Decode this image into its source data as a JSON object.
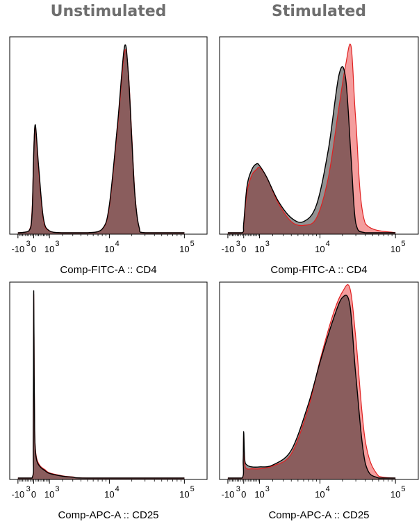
{
  "columns": [
    "Unstimulated",
    "Stimulated"
  ],
  "colors": {
    "series_a_fill": "#6d6d6d",
    "series_a_line": "#000000",
    "series_b_fill": "#f07c7c",
    "series_b_line": "#e02020",
    "overlap": "#8a5a5a"
  },
  "chart_data": [
    {
      "type": "area",
      "column": "Unstimulated",
      "xlabel": "Comp-FITC-A :: CD4",
      "x_scale": "biexponential",
      "x_ticks": [
        {
          "base": "-10",
          "exp": "3"
        },
        {
          "base": "0",
          "exp": ""
        },
        {
          "base": "10",
          "exp": "3"
        },
        {
          "base": "10",
          "exp": "4"
        },
        {
          "base": "10",
          "exp": "5"
        }
      ],
      "x": [
        -1000,
        -300,
        -100,
        0,
        100,
        300,
        600,
        1000,
        2000,
        5000,
        8000,
        10000,
        13000,
        16000,
        18000,
        20000,
        22000,
        25000,
        30000,
        100000
      ],
      "series": [
        {
          "values": [
            0,
            0.01,
            0.1,
            0.42,
            0.58,
            0.36,
            0.08,
            0.01,
            0,
            0,
            0.02,
            0.15,
            0.6,
            1.0,
            0.85,
            0.5,
            0.2,
            0.03,
            0,
            0
          ]
        },
        {
          "values": [
            0,
            0.01,
            0.12,
            0.44,
            0.57,
            0.34,
            0.07,
            0.01,
            0,
            0,
            0.02,
            0.14,
            0.58,
            0.97,
            0.86,
            0.52,
            0.21,
            0.03,
            0,
            0
          ]
        }
      ]
    },
    {
      "type": "area",
      "column": "Stimulated",
      "xlabel": "Comp-FITC-A :: CD4",
      "x_scale": "biexponential",
      "x_ticks": [
        {
          "base": "-10",
          "exp": "3"
        },
        {
          "base": "0",
          "exp": ""
        },
        {
          "base": "10",
          "exp": "3"
        },
        {
          "base": "10",
          "exp": "4"
        },
        {
          "base": "10",
          "exp": "5"
        }
      ],
      "x": [
        -1000,
        -100,
        0,
        200,
        500,
        800,
        1000,
        1500,
        2500,
        4000,
        6000,
        9000,
        13000,
        18000,
        22000,
        26000,
        30000,
        40000,
        100000
      ],
      "series": [
        {
          "values": [
            0,
            0,
            0.05,
            0.25,
            0.34,
            0.37,
            0.36,
            0.3,
            0.17,
            0.08,
            0.06,
            0.15,
            0.45,
            0.85,
            0.83,
            0.4,
            0.05,
            0,
            0
          ]
        },
        {
          "values": [
            0,
            0,
            0.04,
            0.22,
            0.31,
            0.34,
            0.35,
            0.3,
            0.16,
            0.06,
            0.04,
            0.08,
            0.3,
            0.68,
            0.9,
            1.0,
            0.6,
            0.05,
            0
          ]
        }
      ]
    },
    {
      "type": "area",
      "column": "Unstimulated",
      "xlabel": "Comp-APC-A :: CD25",
      "x_scale": "biexponential",
      "x_ticks": [
        {
          "base": "-10",
          "exp": "3"
        },
        {
          "base": "0",
          "exp": ""
        },
        {
          "base": "10",
          "exp": "3"
        },
        {
          "base": "10",
          "exp": "4"
        },
        {
          "base": "10",
          "exp": "5"
        }
      ],
      "x": [
        -1000,
        -100,
        -30,
        0,
        30,
        60,
        100,
        200,
        400,
        700,
        1000,
        2000,
        3000,
        5000,
        100000
      ],
      "series": [
        {
          "values": [
            0,
            0,
            0.2,
            1.0,
            0.55,
            0.25,
            0.15,
            0.09,
            0.06,
            0.04,
            0.025,
            0.01,
            0.005,
            0,
            0
          ]
        },
        {
          "values": [
            0,
            0,
            0.18,
            0.98,
            0.56,
            0.26,
            0.16,
            0.1,
            0.065,
            0.045,
            0.028,
            0.012,
            0.006,
            0,
            0
          ]
        }
      ]
    },
    {
      "type": "area",
      "column": "Stimulated",
      "xlabel": "Comp-APC-A :: CD25",
      "x_scale": "biexponential",
      "x_ticks": [
        {
          "base": "-10",
          "exp": "3"
        },
        {
          "base": "0",
          "exp": ""
        },
        {
          "base": "10",
          "exp": "3"
        },
        {
          "base": "10",
          "exp": "4"
        },
        {
          "base": "10",
          "exp": "5"
        }
      ],
      "x": [
        -1000,
        -100,
        -30,
        0,
        60,
        200,
        500,
        1000,
        2000,
        4000,
        7000,
        10000,
        15000,
        20000,
        25000,
        30000,
        40000,
        60000,
        100000
      ],
      "series": [
        {
          "values": [
            0,
            0,
            0.1,
            0.25,
            0.1,
            0.07,
            0.06,
            0.06,
            0.07,
            0.15,
            0.4,
            0.62,
            0.85,
            0.97,
            0.93,
            0.55,
            0.08,
            0,
            0
          ]
        },
        {
          "values": [
            0,
            0,
            0.09,
            0.23,
            0.08,
            0.05,
            0.05,
            0.05,
            0.065,
            0.13,
            0.38,
            0.63,
            0.88,
            1.0,
            1.02,
            0.75,
            0.2,
            0.01,
            0
          ]
        }
      ]
    }
  ]
}
